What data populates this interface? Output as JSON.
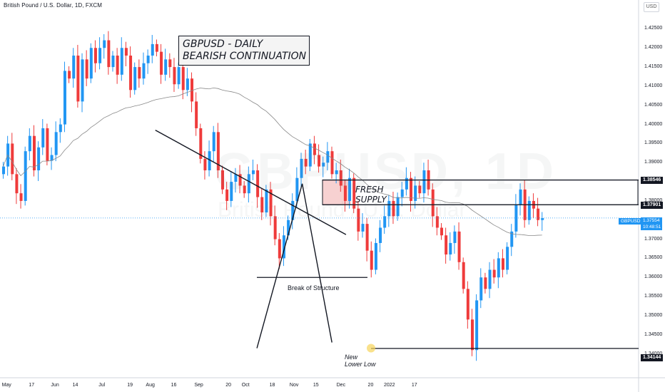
{
  "header": {
    "symbol_line": "British Pound / U.S. Dollar, 1D, FXCM",
    "currency_button": "USD"
  },
  "annotations": {
    "title_line1": "GBPUSD - DAILY",
    "title_line2": "BEARISH CONTINUATION",
    "supply_line1": "FRESH",
    "supply_line2": "SUPPLY",
    "break_label": "Break of Structure",
    "low_line1": "New",
    "low_line2": "Lower Low"
  },
  "watermark": {
    "main": "GBPUSD, 1D",
    "sub": "British Pound / U.S. Dollar"
  },
  "price_tags": {
    "level_top": "1.38546",
    "level_mid": "1.37901",
    "level_low": "1.34144",
    "current_price": "1.37554",
    "countdown": "10:48:51",
    "symbol": "GBPUSD"
  },
  "colors": {
    "up": "#2196f3",
    "down": "#ef3b3b",
    "ma": "#888888",
    "supply_zone": "#f5c6c6",
    "highlight": "#f7d45a"
  },
  "chart_data": {
    "type": "candlestick",
    "title": "British Pound / U.S. Dollar, 1D, FXCM",
    "y_range": [
      1.3375,
      1.4275
    ],
    "y_ticks": [
      "1.42500",
      "1.42000",
      "1.41500",
      "1.41000",
      "1.40500",
      "1.40000",
      "1.39500",
      "1.39000",
      "1.38500",
      "1.38000",
      "1.37500",
      "1.37000",
      "1.36500",
      "1.36000",
      "1.35500",
      "1.35000",
      "1.34500",
      "1.34000"
    ],
    "x_ticks": [
      "May",
      "17",
      "Jun",
      "14",
      "Jul",
      "19",
      "Aug",
      "16",
      "Sep",
      "20",
      "Oct",
      "18",
      "Nov",
      "15",
      "Dec",
      "20",
      "2022",
      "17"
    ],
    "horizontal_levels": [
      1.38546,
      1.37901,
      1.34144
    ],
    "break_of_structure_level": 1.36,
    "supply_zone": [
      1.3855,
      1.379
    ],
    "trendline_points": [
      [
        "2021-07-27",
        1.3985
      ],
      [
        "2021-11-26",
        1.3712
      ]
    ],
    "rising_line_points": [
      [
        "2021-09-30",
        1.3415
      ],
      [
        "2021-10-29",
        1.3845
      ]
    ],
    "projection_points": [
      [
        "2021-10-29",
        1.3845
      ],
      [
        "2021-11-17",
        1.343
      ]
    ],
    "last_price": 1.37554,
    "closes": [
      1.389,
      1.395,
      1.387,
      1.382,
      1.38,
      1.393,
      1.397,
      1.388,
      1.394,
      1.399,
      1.3905,
      1.392,
      1.398,
      1.4,
      1.414,
      1.412,
      1.418,
      1.406,
      1.417,
      1.412,
      1.42,
      1.416,
      1.42,
      1.422,
      1.415,
      1.418,
      1.413,
      1.42,
      1.418,
      1.409,
      1.415,
      1.412,
      1.416,
      1.418,
      1.421,
      1.419,
      1.413,
      1.417,
      1.415,
      1.4105,
      1.415,
      1.409,
      1.412,
      1.406,
      1.399,
      1.391,
      1.388,
      1.393,
      1.398,
      1.388,
      1.383,
      1.38,
      1.385,
      1.387,
      1.384,
      1.382,
      1.387,
      1.388,
      1.381,
      1.377,
      1.383,
      1.376,
      1.37,
      1.365,
      1.371,
      1.375,
      1.38,
      1.386,
      1.391,
      1.389,
      1.395,
      1.392,
      1.389,
      1.39,
      1.393,
      1.387,
      1.388,
      1.384,
      1.38,
      1.386,
      1.378,
      1.372,
      1.374,
      1.367,
      1.362,
      1.369,
      1.373,
      1.376,
      1.38,
      1.376,
      1.381,
      1.383,
      1.386,
      1.38,
      1.384,
      1.382,
      1.388,
      1.383,
      1.376,
      1.373,
      1.371,
      1.366,
      1.369,
      1.372,
      1.364,
      1.357,
      1.349,
      1.341,
      1.354,
      1.36,
      1.357,
      1.362,
      1.36,
      1.365,
      1.362,
      1.368,
      1.372,
      1.379,
      1.383,
      1.375,
      1.38,
      1.378,
      1.375,
      1.3755
    ]
  }
}
